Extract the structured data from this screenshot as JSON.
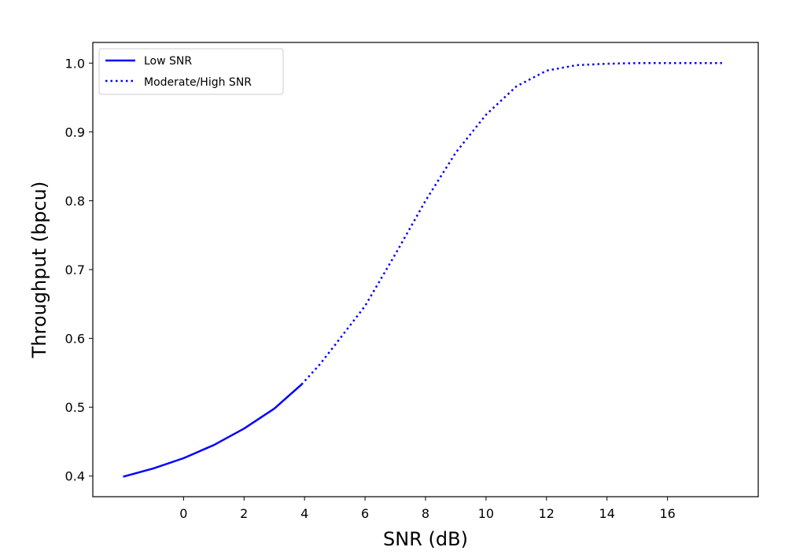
{
  "chart_data": {
    "type": "line",
    "xlabel": "SNR (dB)",
    "ylabel": "Throughput (bpcu)",
    "xlim": [
      -3,
      19
    ],
    "ylim": [
      0.37,
      1.03
    ],
    "xticks": [
      0,
      2,
      4,
      6,
      8,
      10,
      12,
      14,
      16
    ],
    "yticks": [
      0.4,
      0.5,
      0.6,
      0.7,
      0.8,
      0.9,
      1.0
    ],
    "ytick_labels": [
      "0.4",
      "0.5",
      "0.6",
      "0.7",
      "0.8",
      "0.9",
      "1.0"
    ],
    "grid": false,
    "legend_position": "top-left",
    "series": [
      {
        "name": "Low SNR",
        "style": "solid",
        "color": "#0000ff",
        "x": [
          -2,
          -1,
          0,
          1,
          2,
          3,
          3.9
        ],
        "y": [
          0.399,
          0.411,
          0.426,
          0.445,
          0.469,
          0.498,
          0.533
        ]
      },
      {
        "name": "Moderate/High SNR",
        "style": "dotted",
        "color": "#0000ff",
        "x": [
          3.9,
          4.5,
          5,
          6,
          7,
          8,
          9,
          10,
          11,
          12,
          13,
          14,
          15,
          16,
          17.8
        ],
        "y": [
          0.533,
          0.562,
          0.59,
          0.647,
          0.722,
          0.8,
          0.87,
          0.925,
          0.966,
          0.989,
          0.997,
          0.999,
          1.0,
          1.0,
          1.0
        ]
      }
    ]
  }
}
